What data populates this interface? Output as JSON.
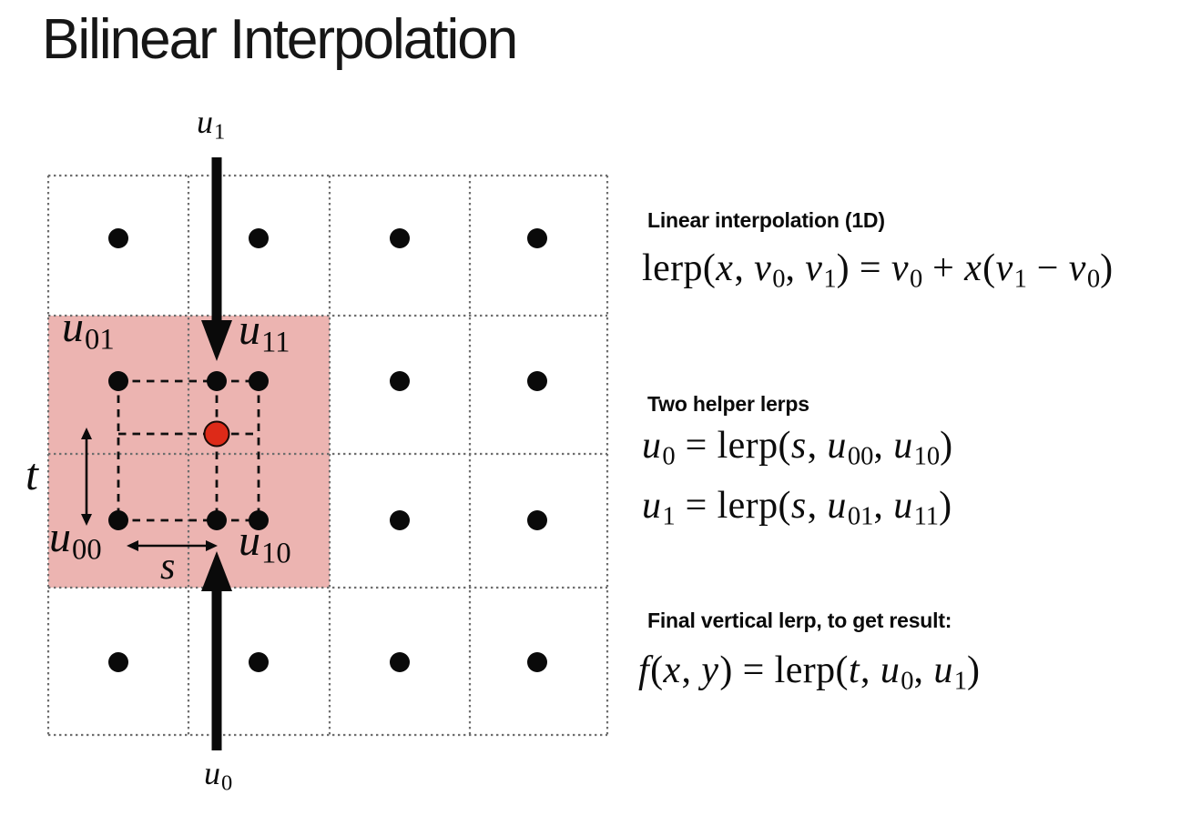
{
  "title": "Bilinear Interpolation",
  "colors": {
    "highlight": "#ecb4b1",
    "point": "#dd2a18",
    "grid_line": "#6e6e6e",
    "ink": "#0b0b0b"
  },
  "diagram": {
    "labels": {
      "u1": {
        "base": "u",
        "sub": "1"
      },
      "u0": {
        "base": "u",
        "sub": "0"
      },
      "u01": {
        "base": "u",
        "sub": "01"
      },
      "u11": {
        "base": "u",
        "sub": "11"
      },
      "u00": {
        "base": "u",
        "sub": "00"
      },
      "u10": {
        "base": "u",
        "sub": "10"
      },
      "t": "t",
      "s": "s"
    }
  },
  "right_column": {
    "block1": {
      "heading": "Linear interpolation (1D)",
      "formula": [
        [
          "rm",
          "lerp("
        ],
        [
          "it",
          "x"
        ],
        [
          "rm",
          ", "
        ],
        [
          "it",
          "v"
        ],
        [
          "sb",
          "0"
        ],
        [
          "rm",
          ", "
        ],
        [
          "it",
          "v"
        ],
        [
          "sb",
          "1"
        ],
        [
          "rm",
          ") = "
        ],
        [
          "it",
          "v"
        ],
        [
          "sb",
          "0"
        ],
        [
          "rm",
          " + "
        ],
        [
          "it",
          "x"
        ],
        [
          "rm",
          "("
        ],
        [
          "it",
          "v"
        ],
        [
          "sb",
          "1"
        ],
        [
          "rm",
          " − "
        ],
        [
          "it",
          "v"
        ],
        [
          "sb",
          "0"
        ],
        [
          "rm",
          ")"
        ]
      ]
    },
    "block2": {
      "heading": "Two helper lerps",
      "formula_u0": [
        [
          "it",
          "u"
        ],
        [
          "sb",
          "0"
        ],
        [
          "rm",
          " = lerp("
        ],
        [
          "it",
          "s"
        ],
        [
          "rm",
          ", "
        ],
        [
          "it",
          "u"
        ],
        [
          "sb",
          "00"
        ],
        [
          "rm",
          ", "
        ],
        [
          "it",
          "u"
        ],
        [
          "sb",
          "10"
        ],
        [
          "rm",
          ")"
        ]
      ],
      "formula_u1": [
        [
          "it",
          "u"
        ],
        [
          "sb",
          "1"
        ],
        [
          "rm",
          " = lerp("
        ],
        [
          "it",
          "s"
        ],
        [
          "rm",
          ", "
        ],
        [
          "it",
          "u"
        ],
        [
          "sb",
          "01"
        ],
        [
          "rm",
          ", "
        ],
        [
          "it",
          "u"
        ],
        [
          "sb",
          "11"
        ],
        [
          "rm",
          ")"
        ]
      ]
    },
    "block3": {
      "heading": "Final vertical lerp, to get result:",
      "formula": [
        [
          "it",
          "f"
        ],
        [
          "rm",
          "("
        ],
        [
          "it",
          "x"
        ],
        [
          "rm",
          ", "
        ],
        [
          "it",
          "y"
        ],
        [
          "rm",
          ") = lerp("
        ],
        [
          "it",
          "t"
        ],
        [
          "rm",
          ", "
        ],
        [
          "it",
          "u"
        ],
        [
          "sb",
          "0"
        ],
        [
          "rm",
          ", "
        ],
        [
          "it",
          "u"
        ],
        [
          "sb",
          "1"
        ],
        [
          "rm",
          ")"
        ]
      ]
    }
  }
}
